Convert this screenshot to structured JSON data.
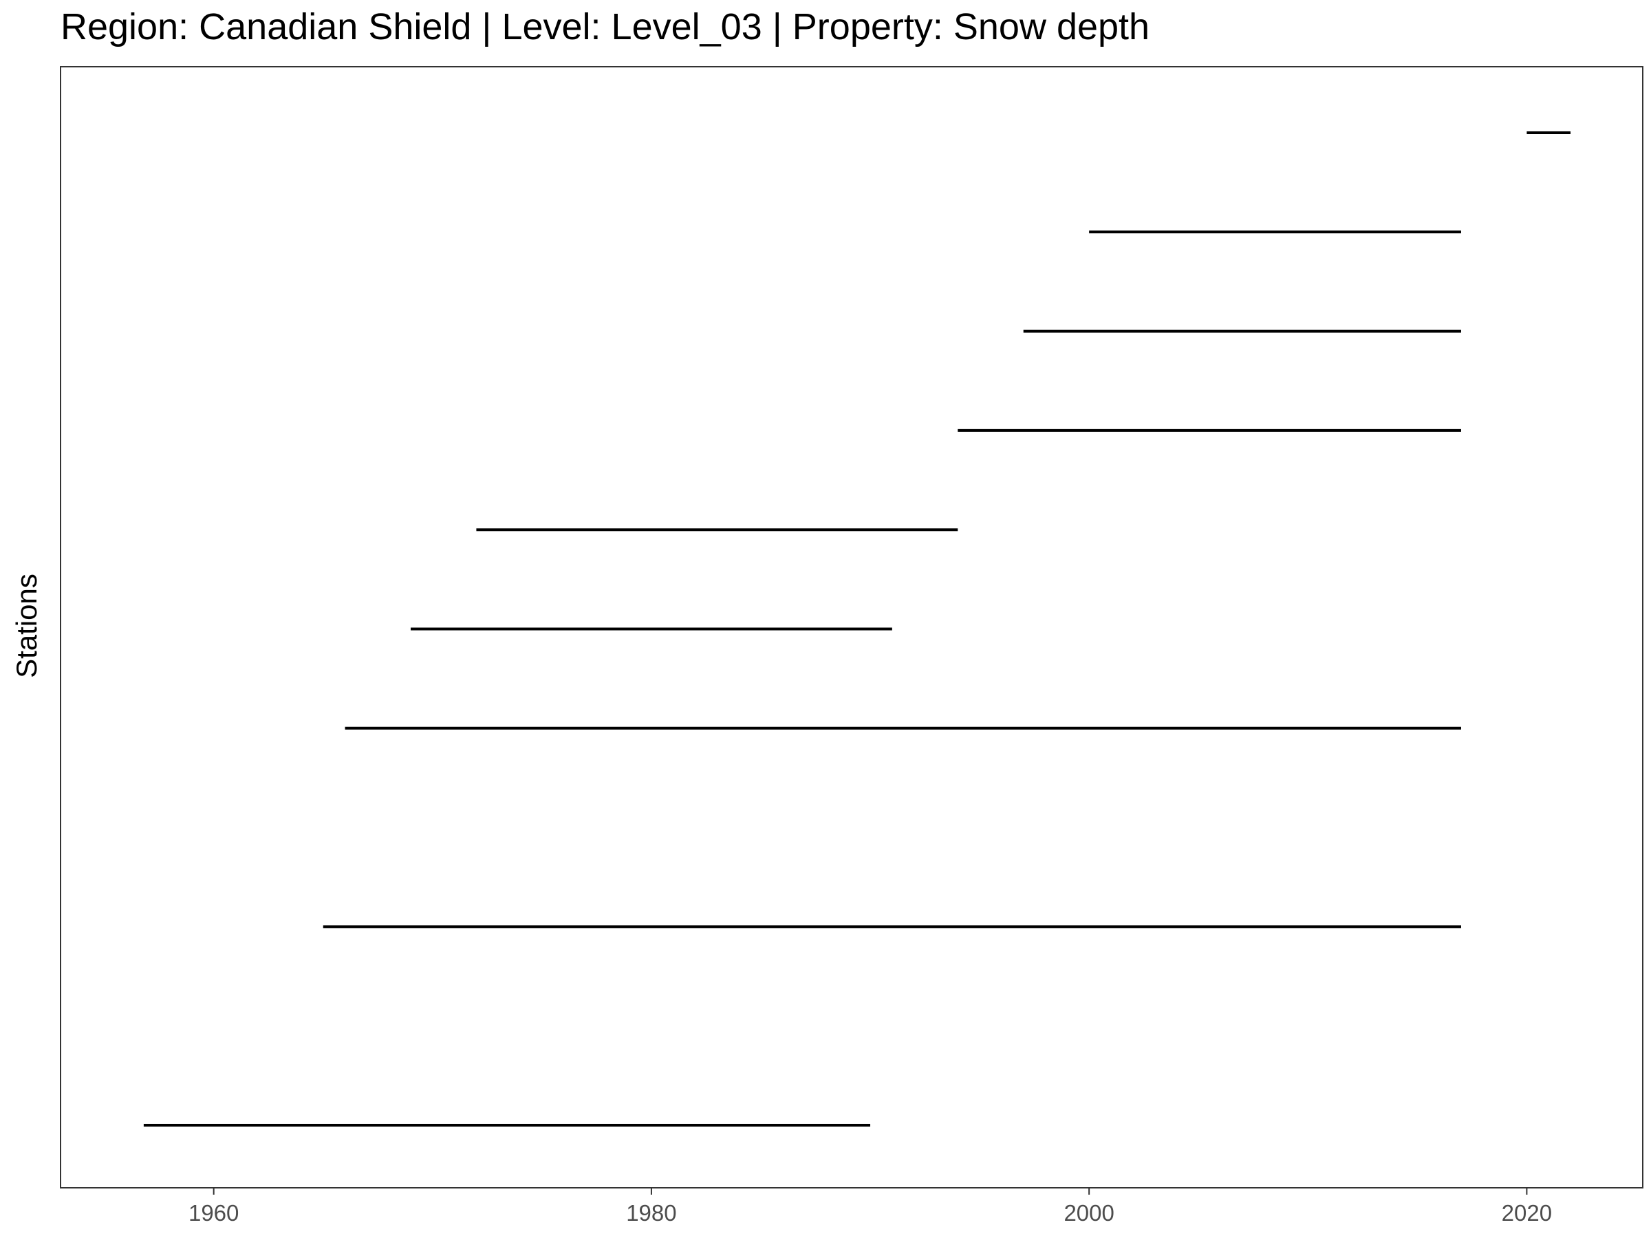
{
  "chart_data": {
    "type": "timeline",
    "title": "Region: Canadian Shield | Level: Level_03 | Property: Snow depth",
    "xlabel": "",
    "ylabel": "Stations",
    "xlim": [
      1953,
      2025.3
    ],
    "xticks": [
      1960,
      1980,
      2000,
      2020
    ],
    "grid": false,
    "legend": "none",
    "line_color": "#000000",
    "segments": [
      {
        "start": 1956.8,
        "end": 1990.0
      },
      {
        "start": 1965.0,
        "end": 2017.0
      },
      {
        "start": 1966.0,
        "end": 2017.0
      },
      {
        "start": 1969.0,
        "end": 1991.0
      },
      {
        "start": 1972.0,
        "end": 1994.0
      },
      {
        "start": 1994.0,
        "end": 2017.0
      },
      {
        "start": 1997.0,
        "end": 2017.0
      },
      {
        "start": 2000.0,
        "end": 2017.0
      },
      {
        "start": 2020.0,
        "end": 2022.0
      }
    ],
    "segment_slots": [
      0,
      2,
      4,
      5,
      6,
      7,
      8,
      9,
      10
    ],
    "slot_count": 11
  }
}
